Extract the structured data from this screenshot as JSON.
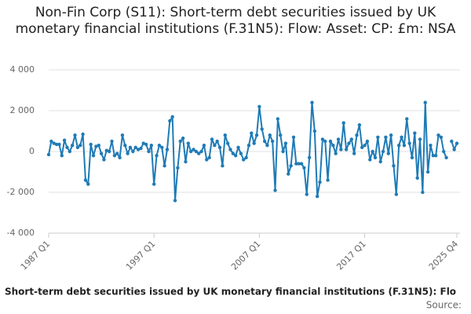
{
  "chart_data": {
    "type": "line",
    "title": "Non-Fin Corp (S11): Short-term debt securities issued by UK monetary financial institutions (F.31N5): Flow: Asset: CP: £m: NSA",
    "subtitle": "Short-term debt securities issued by UK monetary financial institutions (F.31N5): Flo",
    "source": "Source:",
    "categories": [
      "1987 Q1",
      null,
      null,
      null,
      null,
      null,
      null,
      null,
      null,
      null,
      null,
      null,
      null,
      null,
      null,
      null,
      null,
      null,
      null,
      null,
      null,
      null,
      null,
      null,
      null,
      null,
      null,
      null,
      null,
      null,
      null,
      null,
      null,
      null,
      null,
      null,
      null,
      null,
      null,
      null,
      "1997 Q1",
      null,
      null,
      null,
      null,
      null,
      null,
      null,
      null,
      null,
      null,
      null,
      null,
      null,
      null,
      null,
      null,
      null,
      null,
      null,
      null,
      null,
      null,
      null,
      null,
      null,
      null,
      null,
      null,
      null,
      null,
      null,
      null,
      null,
      null,
      null,
      null,
      null,
      null,
      null,
      "2007 Q1",
      null,
      null,
      null,
      null,
      null,
      null,
      null,
      null,
      null,
      null,
      null,
      null,
      null,
      null,
      null,
      null,
      null,
      null,
      null,
      null,
      null,
      null,
      null,
      null,
      null,
      null,
      null,
      null,
      null,
      null,
      null,
      null,
      null,
      null,
      null,
      null,
      null,
      null,
      null,
      "2017 Q1",
      null,
      null,
      null,
      null,
      null,
      null,
      null,
      null,
      null,
      null,
      null,
      null,
      null,
      null,
      null,
      null,
      null,
      null,
      null,
      null,
      null,
      null,
      null,
      null,
      null,
      null,
      null,
      null,
      null,
      null,
      null,
      null,
      null,
      null,
      "2025 Q4"
    ],
    "series": [
      {
        "color": "#1f7bb6",
        "values": [
          -150,
          500,
          400,
          350,
          350,
          -200,
          550,
          200,
          0,
          300,
          800,
          200,
          300,
          850,
          -1400,
          -1600,
          350,
          -200,
          250,
          300,
          -100,
          -400,
          50,
          0,
          500,
          -200,
          -100,
          -300,
          800,
          300,
          -100,
          200,
          0,
          200,
          100,
          150,
          400,
          350,
          0,
          300,
          -1600,
          -200,
          300,
          200,
          -700,
          100,
          1500,
          1700,
          -2400,
          -800,
          500,
          650,
          -500,
          400,
          0,
          100,
          0,
          -100,
          0,
          300,
          -400,
          -300,
          600,
          300,
          500,
          200,
          -700,
          800,
          400,
          100,
          -100,
          -200,
          200,
          -100,
          -400,
          -300,
          300,
          900,
          400,
          800,
          2200,
          1100,
          500,
          300,
          800,
          500,
          -1900,
          1600,
          800,
          0,
          400,
          -1100,
          -700,
          700,
          -600,
          -600,
          -600,
          -800,
          -2100,
          -300,
          2400,
          1000,
          -2200,
          -1500,
          600,
          500,
          -1400,
          500,
          300,
          -100,
          600,
          100,
          1400,
          100,
          400,
          600,
          -100,
          800,
          1300,
          200,
          300,
          500,
          -400,
          0,
          -300,
          700,
          -500,
          0,
          700,
          -100,
          800,
          -700,
          -2100,
          300,
          700,
          300,
          1600,
          400,
          -300,
          900,
          -1300,
          600,
          -2000,
          2400,
          -1000,
          300,
          -200,
          -200,
          800,
          700,
          0,
          -300,
          null,
          500,
          100,
          400
        ]
      }
    ],
    "ylim": [
      -4000,
      4000
    ],
    "yticks": [
      {
        "value": -4000,
        "label": "-4 000"
      },
      {
        "value": -2000,
        "label": "-2 000"
      },
      0,
      {
        "value": 2000,
        "label": "2 000"
      },
      {
        "value": 4000,
        "label": "4 000"
      }
    ],
    "grid": true
  }
}
